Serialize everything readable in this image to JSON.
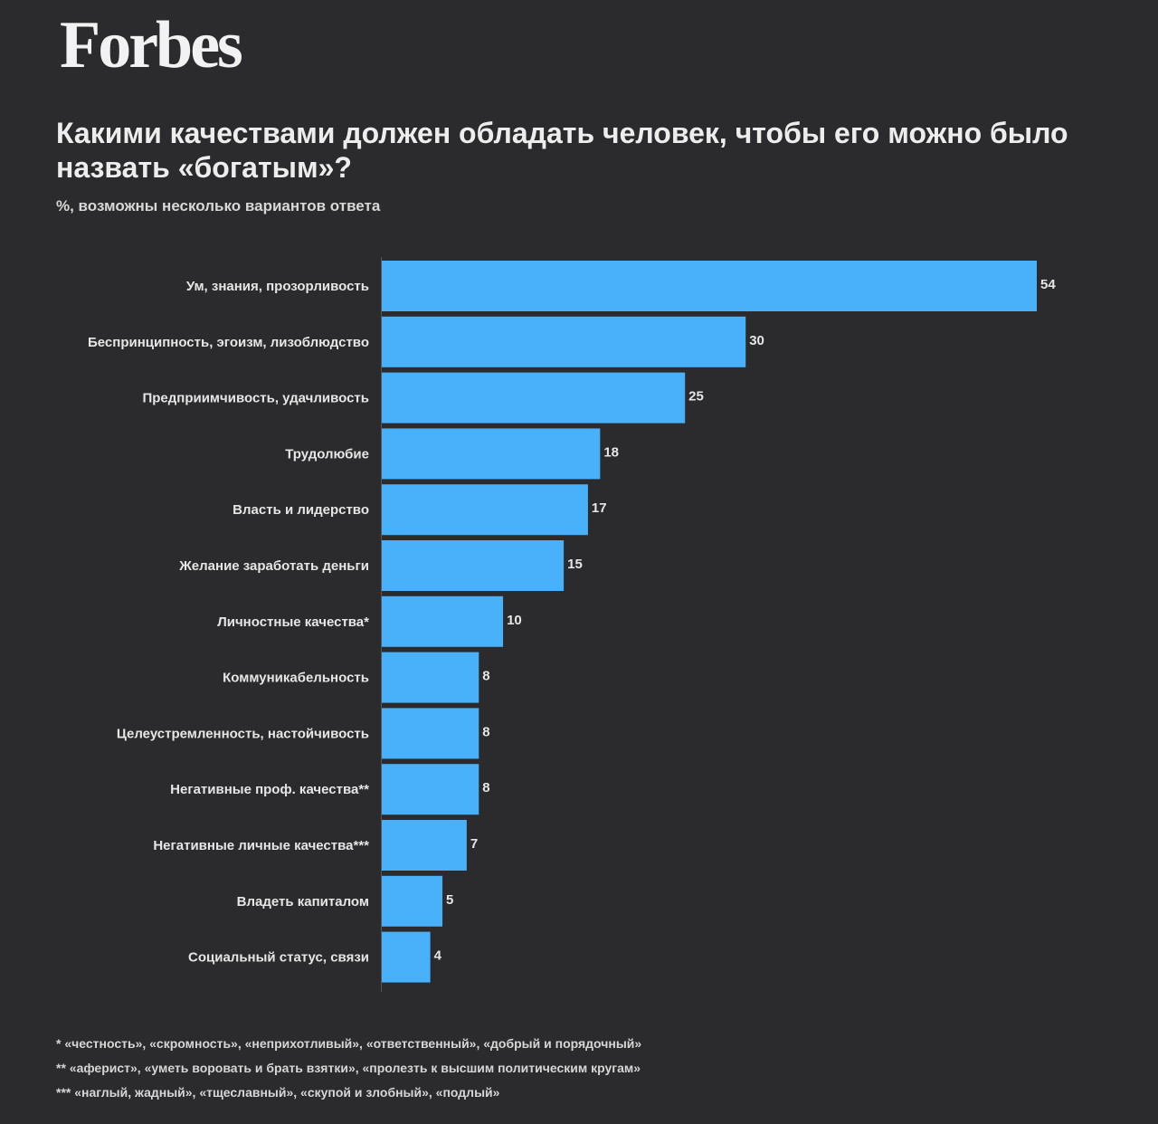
{
  "brand": "Forbes",
  "title": "Какими качествами должен обладать человек, чтобы его можно было назвать «богатым»?",
  "subtitle": "%, возможны несколько вариантов ответа",
  "colors": {
    "background": "#2b2b2d",
    "bar": "#49b0fa",
    "text": "#e8e8e8"
  },
  "chart_data": {
    "type": "bar",
    "orientation": "horizontal",
    "categories": [
      "Ум, знания, прозорливость",
      "Беспринципность, эгоизм, лизоблюдство",
      "Предприимчивость, удачливость",
      "Трудолюбие",
      "Власть и лидерство",
      "Желание заработать деньги",
      "Личностные качества*",
      "Коммуникабельность",
      "Целеустремленность, настойчивость",
      "Негативные проф. качества**",
      "Негативные личные качества***",
      "Владеть капиталом",
      "Социальный статус, связи"
    ],
    "values": [
      54,
      30,
      25,
      18,
      17,
      15,
      10,
      8,
      8,
      8,
      7,
      5,
      4
    ],
    "xlim": [
      0,
      54
    ],
    "grid": false,
    "data_labels": true
  },
  "footnotes": [
    "* «честность», «скромность», «неприхотливый», «ответственный», «добрый и порядочный»",
    "** «аферист», «уметь воровать и брать взятки», «пролезть к высшим политическим кругам»",
    "*** «наглый, жадный», «тщеславный», «скупой и злобный», «подлый»"
  ]
}
